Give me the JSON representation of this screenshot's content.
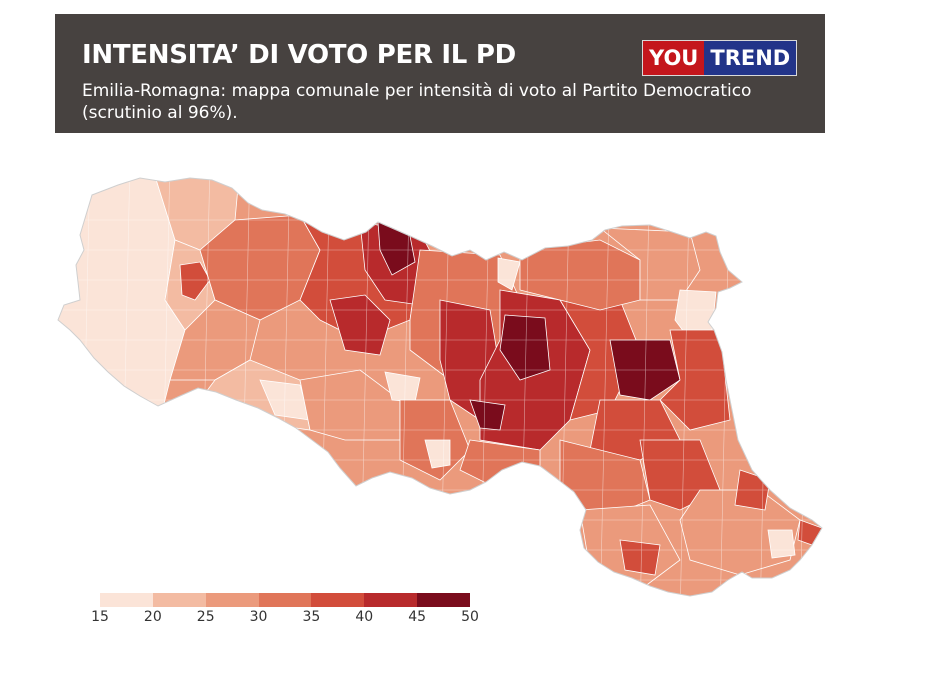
{
  "header": {
    "title": "INTENSITA’ DI VOTO PER IL PD",
    "subtitle": "Emilia-Romagna: mappa comunale per intensità di voto al Partito Democratico (scrutinio al 96%)."
  },
  "logo": {
    "part1": "YOU",
    "part2": "TREND",
    "part1_color": "#c4161c",
    "part2_color": "#223489"
  },
  "legend": {
    "bins": [
      {
        "from": 15,
        "to": 20,
        "color": "#fbe4d8"
      },
      {
        "from": 20,
        "to": 25,
        "color": "#f3bba2"
      },
      {
        "from": 25,
        "to": 30,
        "color": "#eb9a7c"
      },
      {
        "from": 30,
        "to": 35,
        "color": "#e07559"
      },
      {
        "from": 35,
        "to": 40,
        "color": "#d24d3b"
      },
      {
        "from": 40,
        "to": 45,
        "color": "#b82a2c"
      },
      {
        "from": 45,
        "to": 50,
        "color": "#7a0c1c"
      }
    ],
    "ticks": [
      "15",
      "20",
      "25",
      "30",
      "35",
      "40",
      "45",
      "50"
    ]
  }
}
